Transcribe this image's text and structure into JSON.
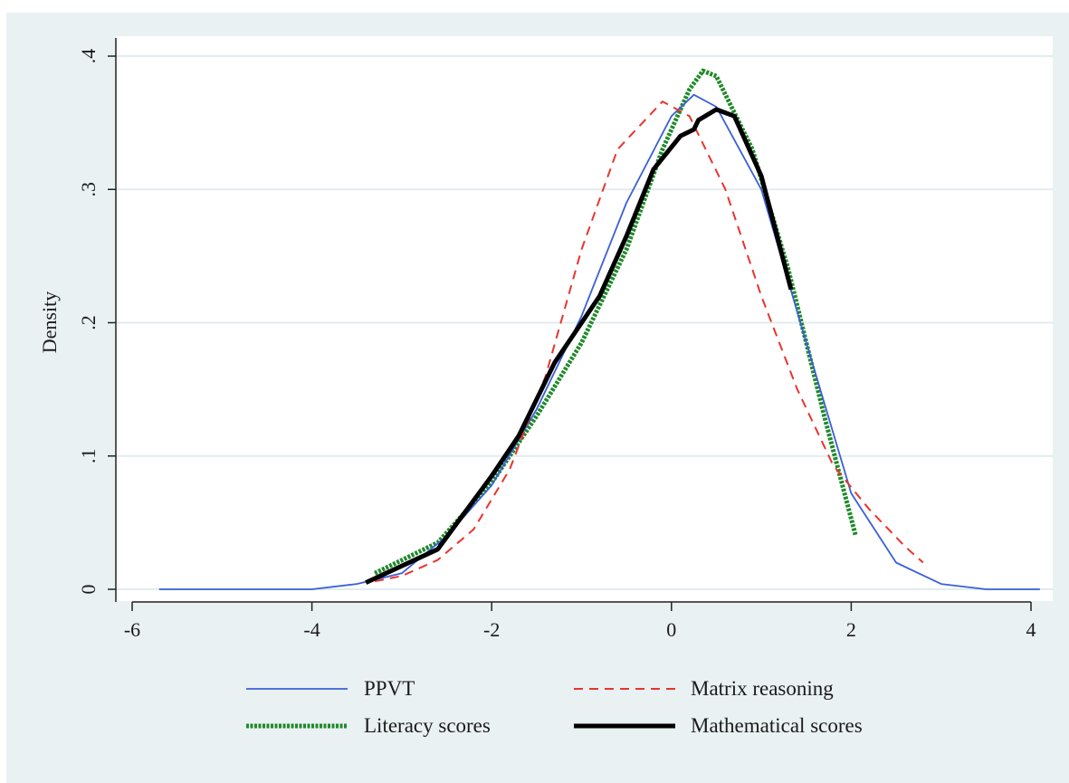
{
  "figure": {
    "header_text": ""
  },
  "chart_data": {
    "type": "line",
    "title": "",
    "xlabel": "",
    "ylabel": "Density",
    "xlim": [
      -6,
      4.1
    ],
    "ylim": [
      0,
      0.4
    ],
    "x_ticks": [
      {
        "value": -6,
        "label": "-6"
      },
      {
        "value": -4,
        "label": "-4"
      },
      {
        "value": -2,
        "label": "-2"
      },
      {
        "value": 0,
        "label": "0"
      },
      {
        "value": 2,
        "label": "2"
      },
      {
        "value": 4,
        "label": "4"
      }
    ],
    "y_ticks": [
      {
        "value": 0,
        "label": "0"
      },
      {
        "value": 0.1,
        "label": ".1"
      },
      {
        "value": 0.2,
        "label": ".2"
      },
      {
        "value": 0.3,
        "label": ".3"
      },
      {
        "value": 0.4,
        "label": ".4"
      }
    ],
    "grid": true,
    "legend_position": "bottom",
    "series": [
      {
        "name": "PPVT",
        "color": "#3a5fd9",
        "style": "solid-thin",
        "points": [
          [
            -5.7,
            0
          ],
          [
            -4,
            0
          ],
          [
            -3.5,
            0.004
          ],
          [
            -3,
            0.012
          ],
          [
            -2.5,
            0.04
          ],
          [
            -2,
            0.078
          ],
          [
            -1.5,
            0.135
          ],
          [
            -1,
            0.205
          ],
          [
            -0.5,
            0.29
          ],
          [
            0,
            0.355
          ],
          [
            0.25,
            0.371
          ],
          [
            0.5,
            0.362
          ],
          [
            1,
            0.3
          ],
          [
            1.5,
            0.185
          ],
          [
            2,
            0.072
          ],
          [
            2.5,
            0.02
          ],
          [
            3,
            0.004
          ],
          [
            3.5,
            0
          ],
          [
            4.1,
            0
          ]
        ]
      },
      {
        "name": "Matrix reasoning",
        "color": "#e8342e",
        "style": "dashed",
        "points": [
          [
            -3.3,
            0.006
          ],
          [
            -3,
            0.01
          ],
          [
            -2.6,
            0.022
          ],
          [
            -2.2,
            0.045
          ],
          [
            -1.8,
            0.09
          ],
          [
            -1.4,
            0.16
          ],
          [
            -1,
            0.255
          ],
          [
            -0.6,
            0.33
          ],
          [
            -0.1,
            0.366
          ],
          [
            0.2,
            0.355
          ],
          [
            0.6,
            0.3
          ],
          [
            1,
            0.22
          ],
          [
            1.4,
            0.15
          ],
          [
            1.8,
            0.093
          ],
          [
            2.2,
            0.06
          ],
          [
            2.6,
            0.032
          ],
          [
            2.8,
            0.02
          ]
        ]
      },
      {
        "name": "Literacy scores",
        "color": "#1f8a2a",
        "style": "dotted-thick",
        "points": [
          [
            -3.3,
            0.012
          ],
          [
            -2.6,
            0.035
          ],
          [
            -2,
            0.08
          ],
          [
            -1.5,
            0.13
          ],
          [
            -1,
            0.185
          ],
          [
            -0.5,
            0.255
          ],
          [
            -0.1,
            0.33
          ],
          [
            0.2,
            0.375
          ],
          [
            0.35,
            0.389
          ],
          [
            0.5,
            0.385
          ],
          [
            0.9,
            0.33
          ],
          [
            1.3,
            0.24
          ],
          [
            1.7,
            0.13
          ],
          [
            2.05,
            0.04
          ]
        ]
      },
      {
        "name": "Mathematical scores",
        "color": "#000000",
        "style": "solid-thick",
        "points": [
          [
            -3.4,
            0.005
          ],
          [
            -2.6,
            0.03
          ],
          [
            -2,
            0.085
          ],
          [
            -1.7,
            0.115
          ],
          [
            -1.3,
            0.17
          ],
          [
            -0.8,
            0.22
          ],
          [
            -0.5,
            0.265
          ],
          [
            -0.2,
            0.315
          ],
          [
            0.1,
            0.34
          ],
          [
            0.25,
            0.345
          ],
          [
            0.3,
            0.352
          ],
          [
            0.5,
            0.36
          ],
          [
            0.7,
            0.355
          ],
          [
            1,
            0.31
          ],
          [
            1.33,
            0.225
          ]
        ]
      }
    ]
  }
}
